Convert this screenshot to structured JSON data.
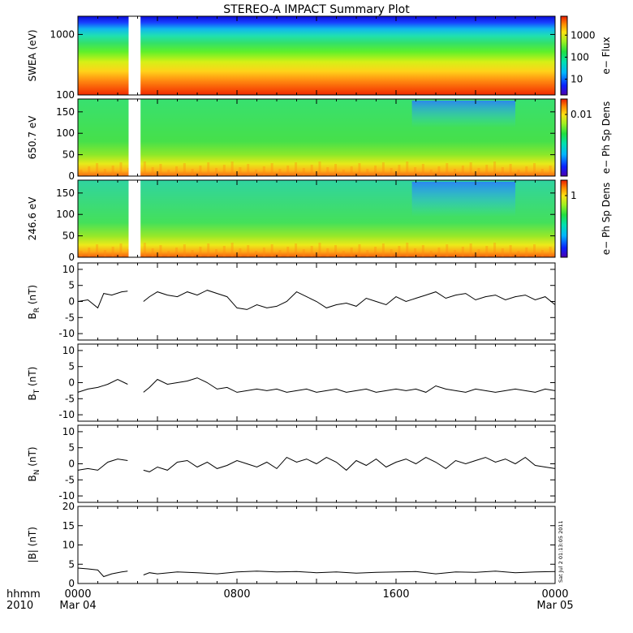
{
  "title": "STEREO-A IMPACT Summary Plot",
  "footer": {
    "unit_label": "hhmm",
    "year_label": "2010",
    "x_ticks": [
      {
        "label": "0000",
        "hour": 0,
        "sub": "Mar 04"
      },
      {
        "label": "0800",
        "hour": 8,
        "sub": ""
      },
      {
        "label": "1600",
        "hour": 16,
        "sub": ""
      },
      {
        "label": "0000",
        "hour": 24,
        "sub": "Mar 05"
      }
    ],
    "timestamp": "Sat Jul  2 01:13:05 2011"
  },
  "colors": {
    "axis": "#000000",
    "line": "#000000",
    "background": "#ffffff"
  },
  "chart_data": [
    {
      "type": "heatmap",
      "name": "swea-spectrogram",
      "ylabel": "SWEA (eV)",
      "colorbar_label": "e− Flux",
      "y_scale": "log",
      "ylim": [
        100,
        2000
      ],
      "y_ticks": [
        100,
        1000
      ],
      "colorbar_ticks": [
        "10",
        "100",
        "1000"
      ],
      "data_gap_hours": [
        2.55,
        3.15
      ]
    },
    {
      "type": "heatmap",
      "name": "pad-650",
      "ylabel": "650.7 eV",
      "colorbar_label": "e− Ph Sp Dens",
      "ylim": [
        0,
        180
      ],
      "y_ticks": [
        0,
        50,
        100,
        150
      ],
      "colorbar_ticks": [
        "0.01"
      ],
      "data_gap_hours": [
        2.55,
        3.15
      ]
    },
    {
      "type": "heatmap",
      "name": "pad-246",
      "ylabel": "246.6 eV",
      "colorbar_label": "e− Ph Sp Dens",
      "ylim": [
        0,
        180
      ],
      "y_ticks": [
        0,
        50,
        100,
        150
      ],
      "colorbar_ticks": [
        "1"
      ],
      "data_gap_hours": [
        2.55,
        3.15
      ]
    },
    {
      "type": "line",
      "name": "br",
      "ylabel_main": "B",
      "ylabel_sub": "R",
      "ylabel_unit": " (nT)",
      "ylim": [
        -12,
        12
      ],
      "y_ticks": [
        -10,
        -5,
        0,
        5,
        10
      ],
      "x": [
        0,
        0.5,
        1,
        1.3,
        1.7,
        2.2,
        2.5,
        3.3,
        3.6,
        4,
        4.5,
        5,
        5.5,
        6,
        6.5,
        7,
        7.5,
        8,
        8.5,
        9,
        9.5,
        10,
        10.5,
        11,
        11.5,
        12,
        12.5,
        13,
        13.5,
        14,
        14.5,
        15,
        15.5,
        16,
        16.5,
        17,
        17.5,
        18,
        18.5,
        19,
        19.5,
        20,
        20.5,
        21,
        21.5,
        22,
        22.5,
        23,
        23.5,
        24
      ],
      "values": [
        0,
        0.5,
        -2,
        2.5,
        2,
        3,
        3.2,
        0,
        1.5,
        3,
        2,
        1.5,
        3,
        2,
        3.5,
        2.5,
        1.5,
        -2,
        -2.5,
        -1,
        -2,
        -1.5,
        0,
        3,
        1.5,
        0,
        -2,
        -1,
        -0.5,
        -1.5,
        1,
        0,
        -1,
        1.5,
        0,
        1,
        2,
        3,
        1,
        2,
        2.5,
        0.5,
        1.5,
        2,
        0.5,
        1.5,
        2,
        0.5,
        1.5,
        -1
      ]
    },
    {
      "type": "line",
      "name": "bt",
      "ylabel_main": "B",
      "ylabel_sub": "T",
      "ylabel_unit": " (nT)",
      "ylim": [
        -12,
        12
      ],
      "y_ticks": [
        -10,
        -5,
        0,
        5,
        10
      ],
      "x": [
        0,
        0.5,
        1,
        1.5,
        2,
        2.5,
        3.3,
        3.6,
        4,
        4.5,
        5,
        5.5,
        6,
        6.5,
        7,
        7.5,
        8,
        8.5,
        9,
        9.5,
        10,
        10.5,
        11,
        11.5,
        12,
        12.5,
        13,
        13.5,
        14,
        14.5,
        15,
        15.5,
        16,
        16.5,
        17,
        17.5,
        18,
        18.5,
        19,
        19.5,
        20,
        20.5,
        21,
        21.5,
        22,
        22.5,
        23,
        23.5,
        24
      ],
      "values": [
        -3,
        -2,
        -1.5,
        -0.5,
        1,
        -0.5,
        -3,
        -1.5,
        1,
        -0.5,
        0,
        0.5,
        1.5,
        0,
        -2,
        -1.5,
        -3,
        -2.5,
        -2,
        -2.5,
        -2,
        -3,
        -2.5,
        -2,
        -3,
        -2.5,
        -2,
        -3,
        -2.5,
        -2,
        -3,
        -2.5,
        -2,
        -2.5,
        -2,
        -3,
        -1,
        -2,
        -2.5,
        -3,
        -2,
        -2.5,
        -3,
        -2.5,
        -2,
        -2.5,
        -3,
        -2,
        -2.5
      ]
    },
    {
      "type": "line",
      "name": "bn",
      "ylabel_main": "B",
      "ylabel_sub": "N",
      "ylabel_unit": " (nT)",
      "ylim": [
        -12,
        12
      ],
      "y_ticks": [
        -10,
        -5,
        0,
        5,
        10
      ],
      "x": [
        0,
        0.5,
        1,
        1.5,
        2,
        2.5,
        3.3,
        3.6,
        4,
        4.5,
        5,
        5.5,
        6,
        6.5,
        7,
        7.5,
        8,
        8.5,
        9,
        9.5,
        10,
        10.5,
        11,
        11.5,
        12,
        12.5,
        13,
        13.5,
        14,
        14.5,
        15,
        15.5,
        16,
        16.5,
        17,
        17.5,
        18,
        18.5,
        19,
        19.5,
        20,
        20.5,
        21,
        21.5,
        22,
        22.5,
        23,
        23.5,
        24
      ],
      "values": [
        -2,
        -1.5,
        -2,
        0.5,
        1.5,
        1,
        -2,
        -2.5,
        -1,
        -2,
        0.5,
        1,
        -1,
        0.5,
        -1.5,
        -0.5,
        1,
        0,
        -1,
        0.5,
        -1.5,
        2,
        0.5,
        1.5,
        0,
        2,
        0.5,
        -2,
        1,
        -0.5,
        1.5,
        -1,
        0.5,
        1.5,
        0,
        2,
        0.5,
        -1.5,
        1,
        0,
        1,
        2,
        0.5,
        1.5,
        0,
        2,
        -0.5,
        -1,
        -1.5
      ]
    },
    {
      "type": "line",
      "name": "bmag",
      "ylabel_main": "|B| (nT)",
      "ylim": [
        0,
        20
      ],
      "y_ticks": [
        0,
        5,
        10,
        15,
        20
      ],
      "x": [
        0,
        0.5,
        1,
        1.3,
        1.7,
        2.2,
        2.5,
        3.3,
        3.6,
        4,
        5,
        6,
        7,
        8,
        9,
        10,
        11,
        12,
        13,
        14,
        15,
        16,
        17,
        18,
        19,
        20,
        21,
        22,
        23,
        24
      ],
      "values": [
        4,
        3.8,
        3.5,
        1.8,
        2.5,
        3,
        3.2,
        2.2,
        2.8,
        2.5,
        3,
        2.8,
        2.5,
        3,
        3.2,
        3,
        3.1,
        2.8,
        3,
        2.7,
        2.9,
        3,
        3.1,
        2.5,
        3,
        2.9,
        3.2,
        2.8,
        3,
        3.1
      ]
    }
  ]
}
